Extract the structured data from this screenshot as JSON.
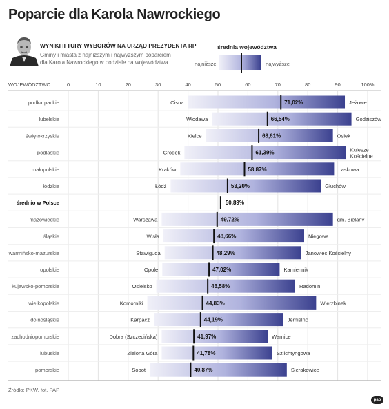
{
  "header": {
    "title": "Poparcie dla Karola Nawrockiego",
    "subtitle": "WYNIKI II TURY WYBORÓW NA URZĄD PREZYDENTA RP",
    "description": "Gminy i miasta z najniższym i najwyższym poparciem dla Karola Nawrockiego w podziale na województwa."
  },
  "legend": {
    "title": "średnia województwa",
    "low_label": "najniższe",
    "high_label": "najwyższe"
  },
  "footer": {
    "source": "Źródło: PKW, fot. PAP",
    "logo": "pap"
  },
  "colors": {
    "bar_light": "#f0f0f8",
    "bar_mid": "#b0b3de",
    "bar_dark": "#3b418f",
    "grid": "#e3e3e3",
    "marker": "#111111"
  },
  "chart_data": {
    "type": "bar",
    "orientation": "horizontal-range",
    "column_header": "WOJEWÓDZTWO",
    "x_ticks": [
      "0",
      "10",
      "20",
      "30",
      "40",
      "50",
      "60",
      "70",
      "80",
      "90",
      "100%"
    ],
    "xlim": [
      0,
      100
    ],
    "rows": [
      {
        "region": "podkarpackie",
        "min_place": "Cisna",
        "max_place": "Jeżowe",
        "min": 40.0,
        "max": 92.4,
        "avg": 71.02,
        "avg_label": "71,02%"
      },
      {
        "region": "lubelskie",
        "min_place": "Włodawa",
        "max_place": "Godziszów",
        "min": 48.0,
        "max": 94.6,
        "avg": 66.54,
        "avg_label": "66,54%"
      },
      {
        "region": "świętokrzyskie",
        "min_place": "Kielce",
        "max_place": "Osiek",
        "min": 46.0,
        "max": 88.4,
        "avg": 63.61,
        "avg_label": "63,61%"
      },
      {
        "region": "podlaskie",
        "min_place": "Gródek",
        "max_place": "Kulesze Kościelne",
        "min": 38.8,
        "max": 92.8,
        "avg": 61.39,
        "avg_label": "61,39%"
      },
      {
        "region": "małopolskie",
        "min_place": "Kraków",
        "max_place": "Laskowa",
        "min": 37.4,
        "max": 88.8,
        "avg": 58.87,
        "avg_label": "58,87%"
      },
      {
        "region": "łódzkie",
        "min_place": "Łódź",
        "max_place": "Głuchów",
        "min": 34.2,
        "max": 84.4,
        "avg": 53.2,
        "avg_label": "53,20%"
      },
      {
        "region": "średnio w Polsce",
        "national": true,
        "avg": 50.89,
        "avg_label": "50,89%"
      },
      {
        "region": "mazowieckie",
        "min_place": "Warszawa",
        "max_place": "gm. Bielany",
        "min": 31.2,
        "max": 88.4,
        "avg": 49.72,
        "avg_label": "49,72%"
      },
      {
        "region": "śląskie",
        "min_place": "Wisła",
        "max_place": "Niegowa",
        "min": 31.8,
        "max": 78.8,
        "avg": 48.66,
        "avg_label": "48,66%"
      },
      {
        "region": "warmińsko-mazurskie",
        "min_place": "Stawiguda",
        "max_place": "Janowiec Kościelny",
        "min": 32.2,
        "max": 77.8,
        "avg": 48.29,
        "avg_label": "48,29%"
      },
      {
        "region": "opolskie",
        "min_place": "Opole",
        "max_place": "Kamiennik",
        "min": 31.4,
        "max": 70.6,
        "avg": 47.02,
        "avg_label": "47,02%"
      },
      {
        "region": "kujawsko-pomorskie",
        "min_place": "Osielsko",
        "max_place": "Radomin",
        "min": 29.4,
        "max": 75.8,
        "avg": 46.58,
        "avg_label": "46,58%"
      },
      {
        "region": "wielkopolskie",
        "min_place": "Komorniki",
        "max_place": "Wierzbinek",
        "min": 26.4,
        "max": 82.8,
        "avg": 44.83,
        "avg_label": "44,83%"
      },
      {
        "region": "dolnośląskie",
        "min_place": "Karpacz",
        "max_place": "Jemielno",
        "min": 28.6,
        "max": 71.8,
        "avg": 44.19,
        "avg_label": "44,19%"
      },
      {
        "region": "zachodniopomorskie",
        "min_place": "Dobra (Szczecińska)",
        "max_place": "Warnice",
        "min": 31.2,
        "max": 66.6,
        "avg": 41.97,
        "avg_label": "41,97%"
      },
      {
        "region": "lubuskie",
        "min_place": "Zielona Góra",
        "max_place": "Szlichtyngowa",
        "min": 31.2,
        "max": 68.2,
        "avg": 41.78,
        "avg_label": "41,78%"
      },
      {
        "region": "pomorskie",
        "min_place": "Sopot",
        "max_place": "Sierakowice",
        "min": 27.2,
        "max": 73.0,
        "avg": 40.87,
        "avg_label": "40,87%"
      }
    ]
  }
}
